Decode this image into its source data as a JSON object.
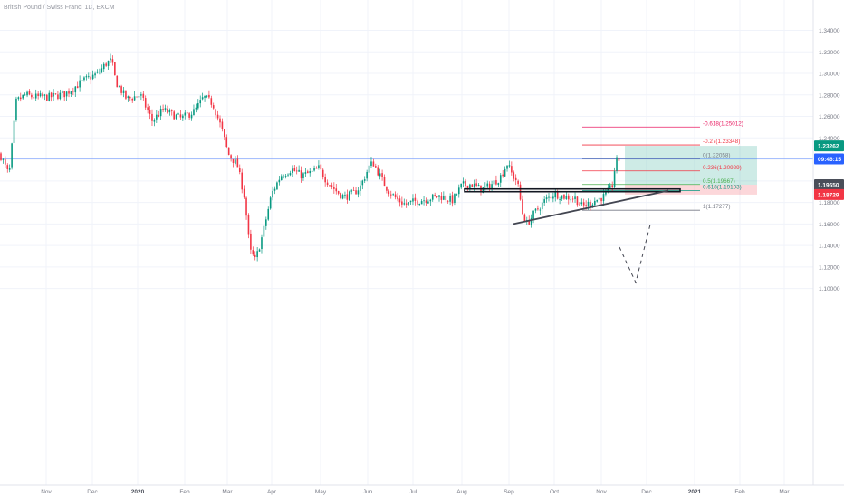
{
  "header": {
    "symbol_title": "British Pound / Swiss Franc, 1D, EXCM"
  },
  "chart_data": {
    "type": "candlestick",
    "title": "British Pound / Swiss Franc, 1D, EXCM",
    "price_axis": {
      "ticks": [
        1.34,
        1.32,
        1.3,
        1.28,
        1.26,
        1.24,
        1.22,
        1.2,
        1.18,
        1.16,
        1.14,
        1.12,
        1.1
      ],
      "ylim": [
        1.095,
        1.35
      ]
    },
    "time_axis": {
      "labels": [
        "Nov",
        "Dec",
        "2020",
        "Feb",
        "Mar",
        "Apr",
        "May",
        "Jun",
        "Jul",
        "Aug",
        "Sep",
        "Oct",
        "Nov",
        "Dec",
        "2021",
        "Feb",
        "Mar"
      ],
      "bold_labels": [
        "2020",
        "2021"
      ]
    },
    "price_labels": [
      {
        "text": "1.23262",
        "value": 1.23262,
        "color": "#089981"
      },
      {
        "text": "09:46:15",
        "value": 1.2205,
        "color": "#2962ff"
      },
      {
        "text": "1.19650",
        "value": 1.1965,
        "color": "#4a4e59"
      },
      {
        "text": "1.18729",
        "value": 1.18729,
        "color": "#f23645"
      }
    ],
    "current_price_line": 1.2205,
    "fibonacci": [
      {
        "label": "-0.618(1.25012)",
        "value": 1.25012,
        "color": "#e91e63"
      },
      {
        "label": "-0.27(1.23348)",
        "value": 1.23348,
        "color": "#f23645"
      },
      {
        "label": "0(1.22058)",
        "value": 1.22058,
        "color": "#787b86"
      },
      {
        "label": "0.236(1.20929)",
        "value": 1.20929,
        "color": "#f23645"
      },
      {
        "label": "0.5(1.19667)",
        "value": 1.19667,
        "color": "#4caf50"
      },
      {
        "label": "0.618(1.19103)",
        "value": 1.19103,
        "color": "#089981"
      },
      {
        "label": "1(1.17277)",
        "value": 1.17277,
        "color": "#787b86"
      }
    ],
    "position_tool": {
      "entry": 1.1965,
      "target": 1.23262,
      "stop": 1.18729
    },
    "resistance_zone": {
      "top": 1.1925,
      "bottom": 1.19
    },
    "trendline": {
      "from": 1.16,
      "to": 1.191
    },
    "colors": {
      "up": "#089981",
      "down": "#f23645",
      "axis_text": "#787b86",
      "grid": "#f0f3fa"
    }
  }
}
